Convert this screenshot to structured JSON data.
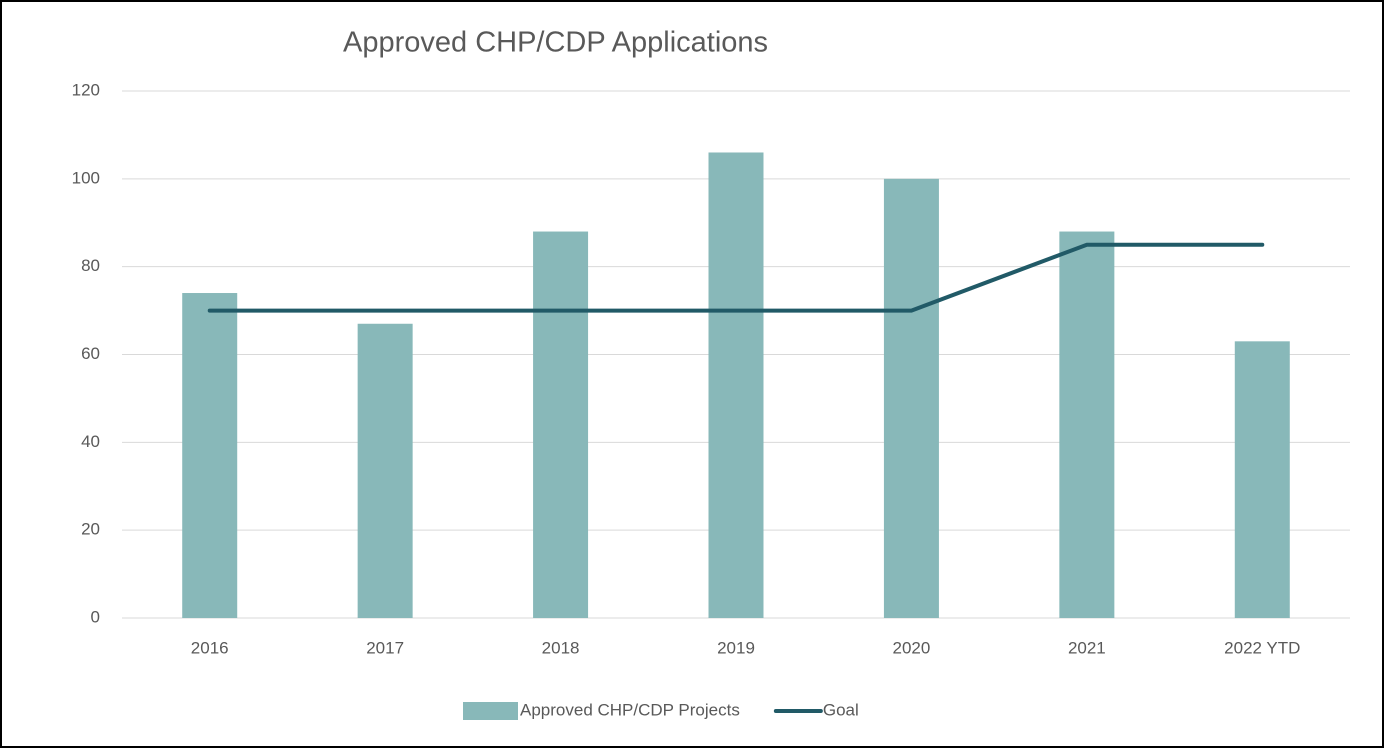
{
  "chart_data": {
    "type": "bar",
    "title": "Approved CHP/CDP Applications",
    "categories": [
      "2016",
      "2017",
      "2018",
      "2019",
      "2020",
      "2021",
      "2022 YTD"
    ],
    "series": [
      {
        "name": "Approved CHP/CDP Projects",
        "type": "bar",
        "color": "#88b8b9",
        "values": [
          74,
          67,
          88,
          106,
          100,
          88,
          63
        ]
      },
      {
        "name": "Goal",
        "type": "line",
        "color": "#215a67",
        "values": [
          70,
          70,
          70,
          70,
          70,
          85,
          85
        ]
      }
    ],
    "ylim": [
      0,
      120
    ],
    "yticks": [
      0,
      20,
      40,
      60,
      80,
      100,
      120
    ],
    "grid": true,
    "legend": "bottom"
  }
}
